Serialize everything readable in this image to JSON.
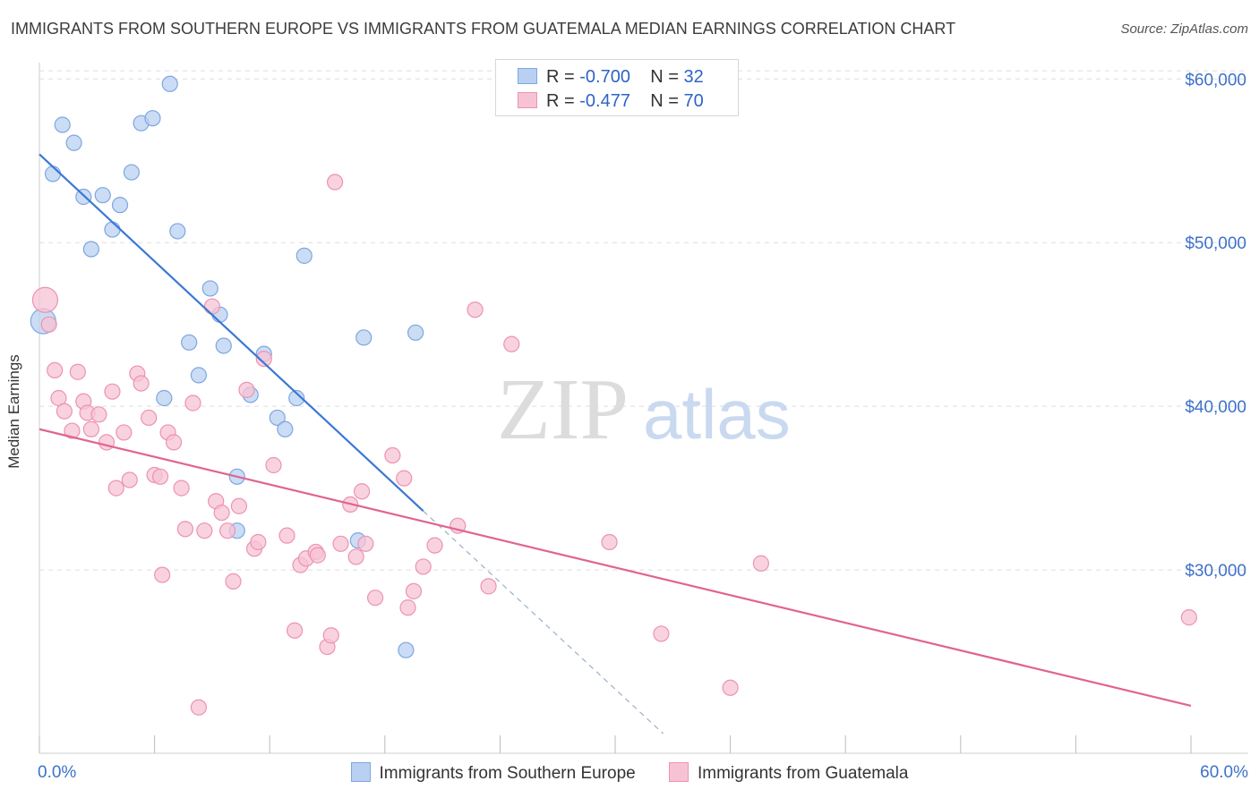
{
  "header": {
    "title": "IMMIGRANTS FROM SOUTHERN EUROPE VS IMMIGRANTS FROM GUATEMALA MEDIAN EARNINGS CORRELATION CHART",
    "source": "Source: ZipAtlas.com"
  },
  "watermark": {
    "zip": "ZIP",
    "atlas": "atlas"
  },
  "legend_top": {
    "rows": [
      {
        "r_label": "R =",
        "r_value": "-0.700",
        "n_label": "N =",
        "n_value": "32"
      },
      {
        "r_label": "R =",
        "r_value": "-0.477",
        "n_label": "N =",
        "n_value": "70"
      }
    ]
  },
  "colors": {
    "series1_fill": "#b9d0f2",
    "series1_stroke": "#7ea6e0",
    "series1_line": "#3a78d4",
    "series2_fill": "#f7c3d4",
    "series2_stroke": "#ec93b1",
    "series2_line": "#e0648f",
    "grid": "#dddddd",
    "tick_label": "#3d72c8"
  },
  "chart_data": {
    "type": "scatter",
    "title": "IMMIGRANTS FROM SOUTHERN EUROPE VS IMMIGRANTS FROM GUATEMALA MEDIAN EARNINGS CORRELATION CHART",
    "xlabel": "",
    "ylabel": "Median Earnings",
    "xlim": [
      0,
      60
    ],
    "ylim": [
      20000,
      61000
    ],
    "x_tick_labels": [
      "0.0%",
      "60.0%"
    ],
    "y_ticks": [
      30000,
      40000,
      50000,
      60000
    ],
    "y_tick_labels": [
      "$30,000",
      "$40,000",
      "$50,000",
      "$60,000"
    ],
    "grid": true,
    "legend_position": "bottom",
    "series": [
      {
        "name": "Immigrants from Southern Europe",
        "r": -0.7,
        "n": 32,
        "points": [
          [
            0.2,
            45200
          ],
          [
            0.7,
            54200
          ],
          [
            1.2,
            57200
          ],
          [
            1.8,
            56100
          ],
          [
            2.3,
            52800
          ],
          [
            2.7,
            49600
          ],
          [
            3.3,
            52900
          ],
          [
            3.8,
            50800
          ],
          [
            4.2,
            52300
          ],
          [
            4.8,
            54300
          ],
          [
            5.3,
            57300
          ],
          [
            5.9,
            57600
          ],
          [
            6.8,
            59700
          ],
          [
            7.2,
            50700
          ],
          [
            7.8,
            43900
          ],
          [
            8.3,
            41900
          ],
          [
            8.9,
            47200
          ],
          [
            9.4,
            45600
          ],
          [
            9.6,
            43700
          ],
          [
            10.3,
            35700
          ],
          [
            10.3,
            32400
          ],
          [
            11.0,
            40700
          ],
          [
            11.7,
            43200
          ],
          [
            12.4,
            39300
          ],
          [
            12.8,
            38600
          ],
          [
            13.4,
            40500
          ],
          [
            13.8,
            49200
          ],
          [
            16.6,
            31800
          ],
          [
            16.9,
            44200
          ],
          [
            19.1,
            25100
          ],
          [
            19.6,
            44500
          ],
          [
            6.5,
            40500
          ]
        ],
        "trend": {
          "x": [
            0.0,
            20.0
          ],
          "y": [
            55400,
            33600
          ]
        },
        "trend_extension": {
          "x": [
            20.0,
            32.5
          ],
          "y": [
            33600,
            20000
          ]
        }
      },
      {
        "name": "Immigrants from Guatemala",
        "r": -0.477,
        "n": 70,
        "points": [
          [
            0.3,
            46500
          ],
          [
            0.5,
            45000
          ],
          [
            0.8,
            42200
          ],
          [
            1.0,
            40500
          ],
          [
            1.3,
            39700
          ],
          [
            1.7,
            38500
          ],
          [
            2.0,
            42100
          ],
          [
            2.3,
            40300
          ],
          [
            2.5,
            39600
          ],
          [
            2.7,
            38600
          ],
          [
            3.1,
            39500
          ],
          [
            3.5,
            37800
          ],
          [
            3.8,
            40900
          ],
          [
            4.0,
            35000
          ],
          [
            4.4,
            38400
          ],
          [
            4.7,
            35500
          ],
          [
            5.1,
            42000
          ],
          [
            5.3,
            41400
          ],
          [
            5.7,
            39300
          ],
          [
            6.0,
            35800
          ],
          [
            6.3,
            35700
          ],
          [
            6.4,
            29700
          ],
          [
            6.7,
            38400
          ],
          [
            7.0,
            37800
          ],
          [
            7.4,
            35000
          ],
          [
            7.6,
            32500
          ],
          [
            8.0,
            40200
          ],
          [
            8.3,
            21600
          ],
          [
            8.6,
            32400
          ],
          [
            9.0,
            46100
          ],
          [
            9.2,
            34200
          ],
          [
            9.5,
            33500
          ],
          [
            9.8,
            32400
          ],
          [
            10.1,
            29300
          ],
          [
            10.4,
            33900
          ],
          [
            10.8,
            41000
          ],
          [
            11.2,
            31300
          ],
          [
            11.4,
            31700
          ],
          [
            11.7,
            42900
          ],
          [
            12.2,
            36400
          ],
          [
            12.9,
            32100
          ],
          [
            13.3,
            26300
          ],
          [
            13.6,
            30300
          ],
          [
            13.9,
            30700
          ],
          [
            14.4,
            31100
          ],
          [
            14.5,
            30900
          ],
          [
            15.0,
            25300
          ],
          [
            15.2,
            26000
          ],
          [
            15.4,
            53700
          ],
          [
            15.7,
            31600
          ],
          [
            16.2,
            34000
          ],
          [
            16.5,
            30800
          ],
          [
            16.8,
            34800
          ],
          [
            17.0,
            31600
          ],
          [
            17.5,
            28300
          ],
          [
            18.4,
            37000
          ],
          [
            19.0,
            35600
          ],
          [
            19.2,
            27700
          ],
          [
            19.5,
            28700
          ],
          [
            20.0,
            30200
          ],
          [
            20.6,
            31500
          ],
          [
            21.8,
            32700
          ],
          [
            22.7,
            45900
          ],
          [
            23.4,
            29000
          ],
          [
            24.6,
            43800
          ],
          [
            29.7,
            31700
          ],
          [
            32.4,
            26100
          ],
          [
            36.0,
            22800
          ],
          [
            37.6,
            30400
          ],
          [
            59.9,
            27100
          ]
        ],
        "trend": {
          "x": [
            0.0,
            60.0
          ],
          "y": [
            38600,
            21700
          ]
        }
      }
    ]
  }
}
